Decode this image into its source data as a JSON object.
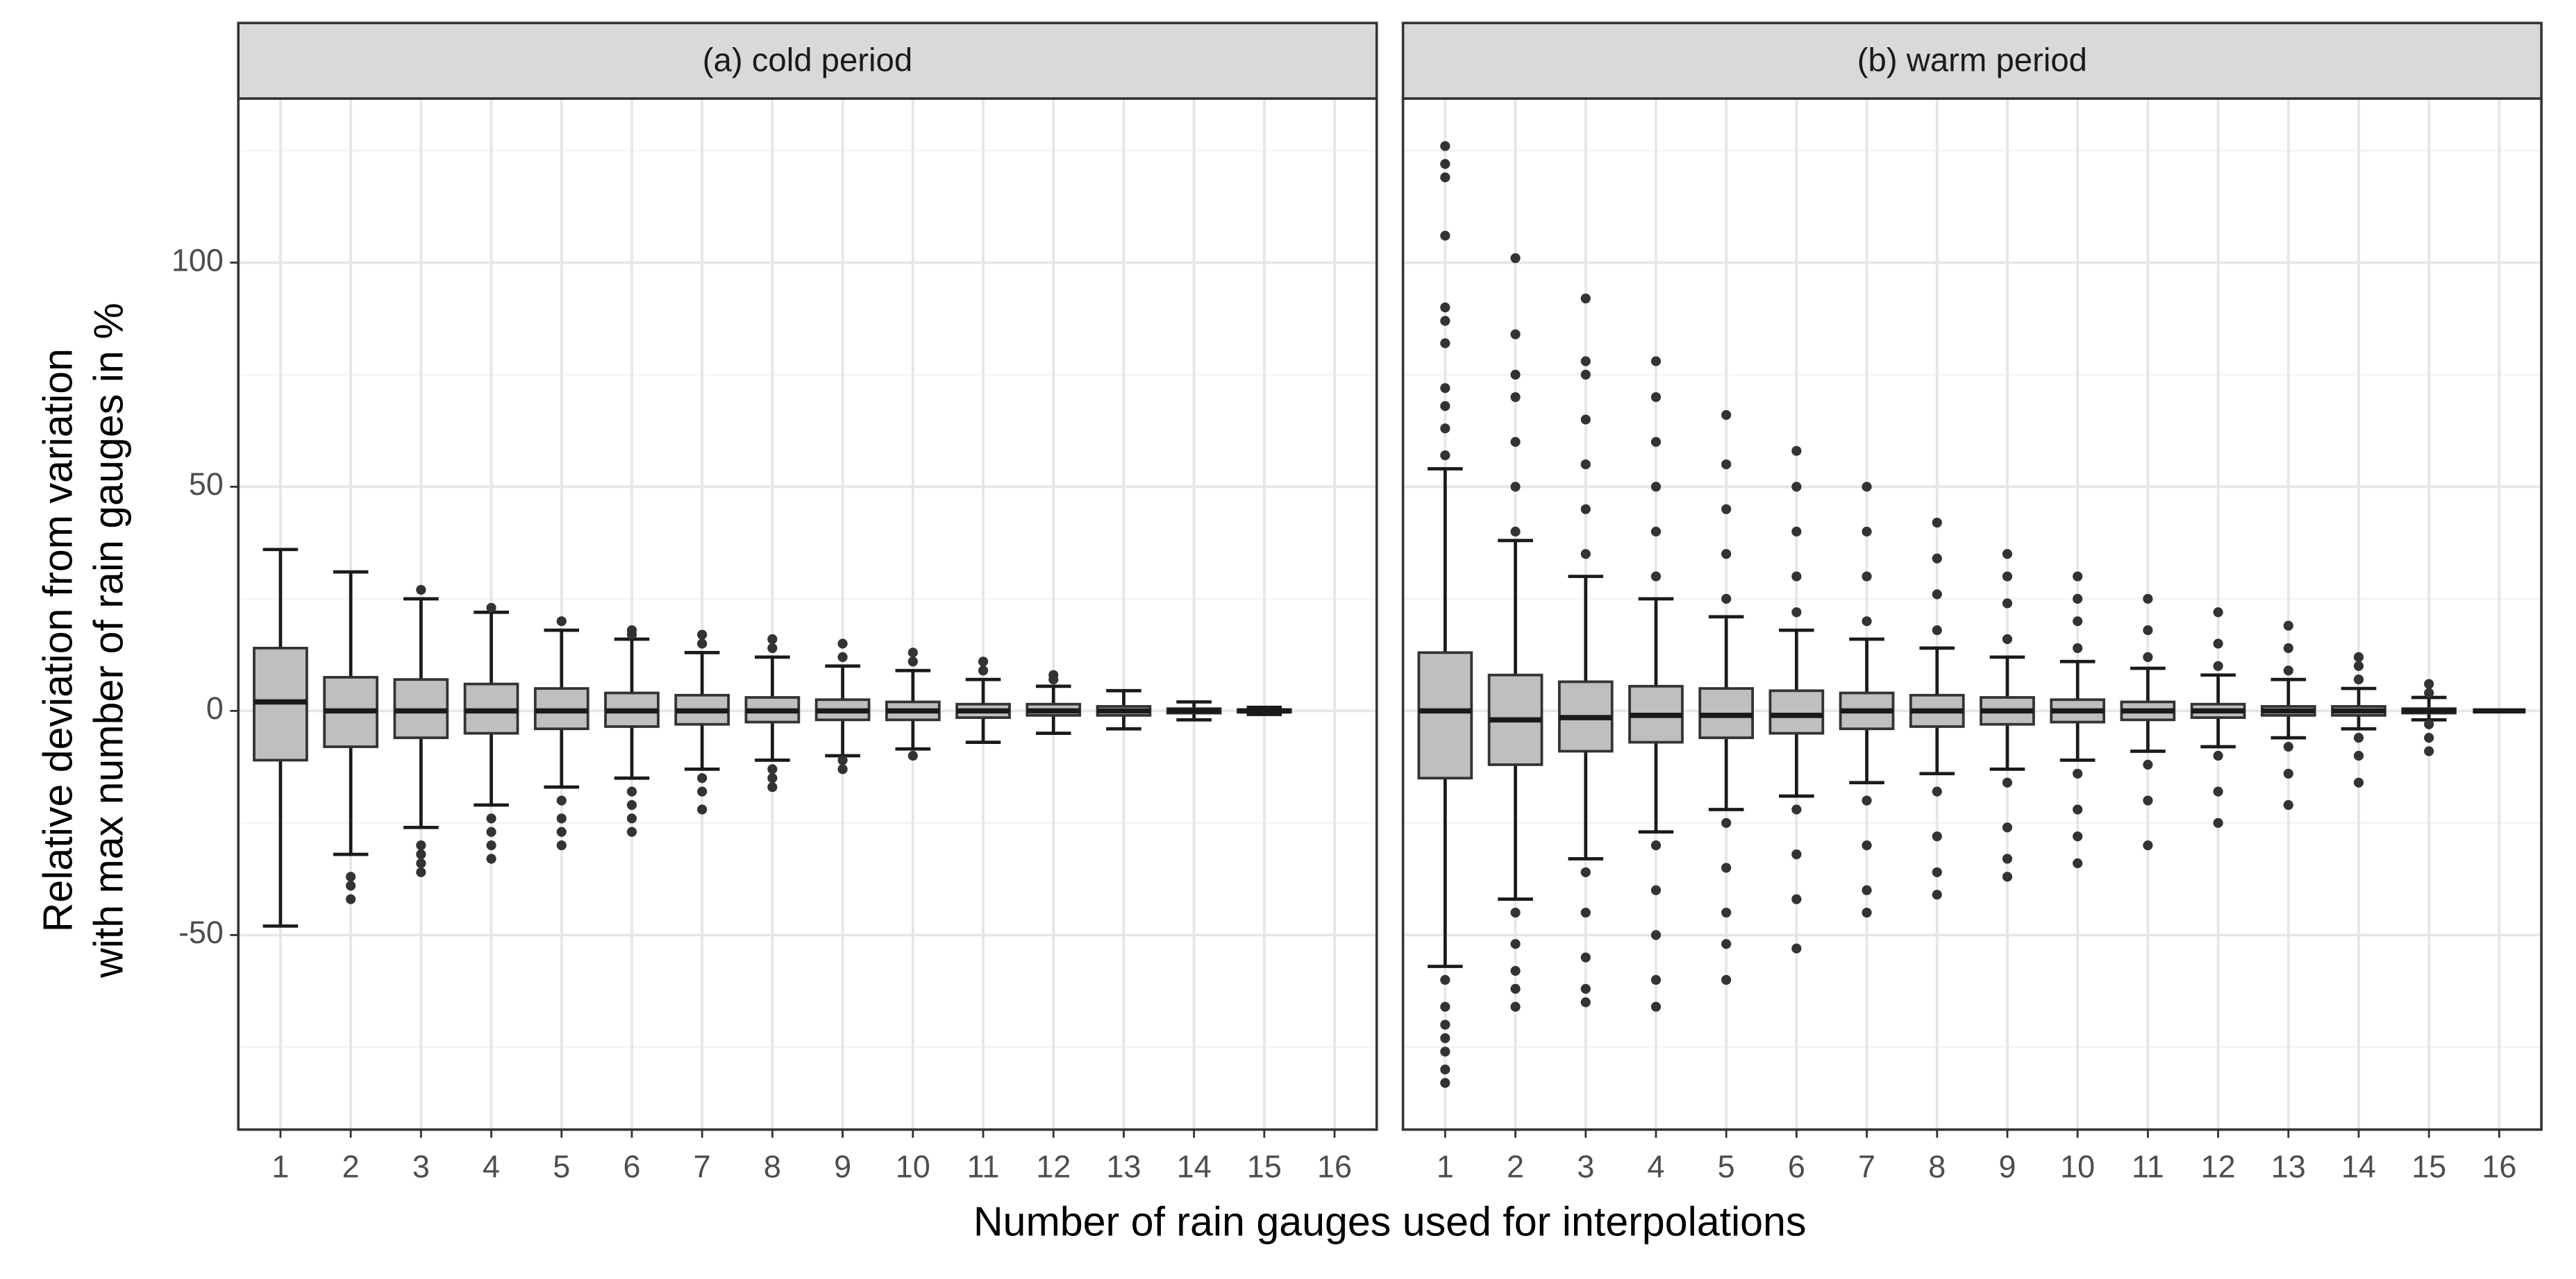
{
  "chart_data": [
    {
      "type": "box",
      "title": "(a) cold period",
      "xlabel": "Number of rain gauges used for interpolations",
      "ylabel": [
        "Relative deviation from variation",
        "with max number of rain gauges in %"
      ],
      "categories": [
        1,
        2,
        3,
        4,
        5,
        6,
        7,
        8,
        9,
        10,
        11,
        12,
        13,
        14,
        15,
        16
      ],
      "whisker_low": [
        -48,
        -32,
        -26,
        -21,
        -17,
        -15,
        -13,
        -11,
        -10,
        -8.5,
        -7,
        -5,
        -4,
        -2,
        -0.8,
        null
      ],
      "q1": [
        -11,
        -8,
        -6,
        -5,
        -4,
        -3.5,
        -3,
        -2.5,
        -2,
        -2,
        -1.5,
        -1,
        -1,
        -0.5,
        -0.3,
        null
      ],
      "median": [
        2,
        0,
        0,
        0,
        0,
        0,
        0,
        0,
        0,
        0,
        0,
        0,
        0,
        0,
        0,
        null
      ],
      "q3": [
        14,
        7.5,
        7,
        6,
        5,
        4,
        3.5,
        3,
        2.5,
        2,
        1.5,
        1.5,
        1,
        0.5,
        0.3,
        null
      ],
      "whisker_high": [
        36,
        31,
        25,
        22,
        18,
        16,
        13,
        12,
        10,
        9,
        7,
        5.5,
        4.5,
        2,
        0.8,
        null
      ],
      "outliers": [
        [],
        [
          -37,
          -39,
          -42
        ],
        [
          27,
          -30,
          -32,
          -34,
          -36
        ],
        [
          23,
          -24,
          -27,
          -30,
          -33
        ],
        [
          20,
          -20,
          -24,
          -27,
          -30
        ],
        [
          17,
          18,
          -18,
          -21,
          -24,
          -27
        ],
        [
          15,
          17,
          -15,
          -18,
          -22
        ],
        [
          14,
          16,
          -13,
          -15,
          -17
        ],
        [
          12,
          15,
          -11,
          -13
        ],
        [
          11,
          13,
          -10
        ],
        [
          9,
          11
        ],
        [
          7,
          8
        ],
        [],
        [],
        [],
        []
      ],
      "ylim": [
        -93.4,
        136.6
      ],
      "yticks": [
        -50,
        0,
        50,
        100
      ],
      "minor_yticks": [
        -75,
        -25,
        25,
        75,
        125
      ],
      "box_color": "#bfbfbf",
      "grid": true
    },
    {
      "type": "box",
      "title": "(b) warm period",
      "categories": [
        1,
        2,
        3,
        4,
        5,
        6,
        7,
        8,
        9,
        10,
        11,
        12,
        13,
        14,
        15,
        16
      ],
      "whisker_low": [
        -57,
        -42,
        -33,
        -27,
        -22,
        -19,
        -16,
        -14,
        -13,
        -11,
        -9,
        -8,
        -6,
        -4,
        -2,
        0
      ],
      "q1": [
        -15,
        -12,
        -9,
        -7,
        -6,
        -5,
        -4,
        -3.5,
        -3,
        -2.5,
        -2,
        -1.5,
        -1,
        -1,
        -0.5,
        0
      ],
      "median": [
        0,
        -2,
        -1.5,
        -1,
        -1,
        -1,
        0,
        0,
        0,
        0,
        0,
        0,
        0,
        0,
        0,
        0
      ],
      "q3": [
        13,
        8,
        6.5,
        5.5,
        5,
        4.5,
        4,
        3.5,
        3,
        2.5,
        2,
        1.5,
        1,
        1,
        0.5,
        0
      ],
      "whisker_high": [
        54,
        38,
        30,
        25,
        21,
        18,
        16,
        14,
        12,
        11,
        9.5,
        8,
        7,
        5,
        3,
        0
      ],
      "outliers": [
        [
          57,
          63,
          68,
          72,
          82,
          87,
          90,
          106,
          119,
          122,
          126,
          -60,
          -66,
          -70,
          -73,
          -76,
          -80,
          -83
        ],
        [
          40,
          50,
          60,
          70,
          75,
          84,
          101,
          -45,
          -52,
          -58,
          -62,
          -66
        ],
        [
          35,
          45,
          55,
          65,
          75,
          78,
          92,
          -36,
          -45,
          -55,
          -62,
          -65
        ],
        [
          30,
          40,
          50,
          60,
          70,
          78,
          -30,
          -40,
          -50,
          -60,
          -66
        ],
        [
          25,
          35,
          45,
          55,
          66,
          -25,
          -35,
          -45,
          -52,
          -60
        ],
        [
          22,
          30,
          40,
          50,
          58,
          -22,
          -32,
          -42,
          -53
        ],
        [
          20,
          30,
          40,
          50,
          -20,
          -30,
          -40,
          -45
        ],
        [
          18,
          26,
          34,
          42,
          -18,
          -28,
          -36,
          -41
        ],
        [
          16,
          24,
          30,
          35,
          -16,
          -26,
          -33,
          -37
        ],
        [
          14,
          20,
          25,
          30,
          -14,
          -22,
          -28,
          -34
        ],
        [
          12,
          18,
          25,
          -12,
          -20,
          -30
        ],
        [
          10,
          15,
          22,
          -10,
          -18,
          -25
        ],
        [
          9,
          14,
          19,
          -8,
          -14,
          -21
        ],
        [
          7,
          10,
          12,
          -6,
          -10,
          -16
        ],
        [
          4,
          6,
          -3,
          -6,
          -9
        ],
        []
      ],
      "ylim": [
        -93.4,
        136.6
      ],
      "yticks": [
        -50,
        0,
        50,
        100
      ],
      "minor_yticks": [
        -75,
        -25,
        25,
        75,
        125
      ],
      "box_color": "#bfbfbf",
      "grid": true
    }
  ]
}
